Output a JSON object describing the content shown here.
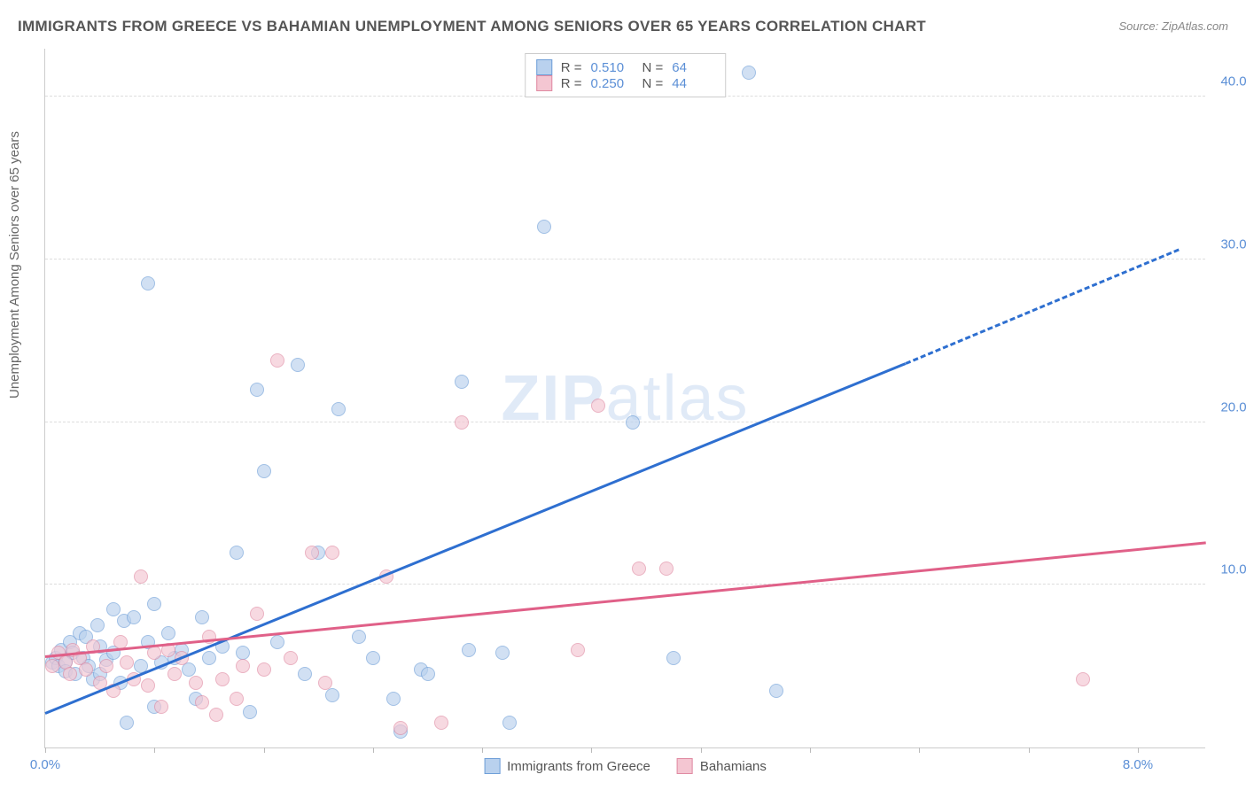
{
  "title": "IMMIGRANTS FROM GREECE VS BAHAMIAN UNEMPLOYMENT AMONG SENIORS OVER 65 YEARS CORRELATION CHART",
  "source": "Source: ZipAtlas.com",
  "ylabel": "Unemployment Among Seniors over 65 years",
  "watermark_a": "ZIP",
  "watermark_b": "atlas",
  "chart": {
    "type": "scatter",
    "xlim": [
      0,
      8.5
    ],
    "ylim": [
      0,
      43
    ],
    "x_ticks": [
      0.0,
      0.8,
      1.6,
      2.4,
      3.2,
      4.0,
      4.8,
      5.6,
      6.4,
      7.2,
      8.0
    ],
    "x_tick_labels": {
      "0": "0.0%",
      "8": "8.0%"
    },
    "y_gridlines": [
      10,
      20,
      30,
      40
    ],
    "y_tick_labels": {
      "10": "10.0%",
      "20": "20.0%",
      "30": "30.0%",
      "40": "40.0%"
    },
    "background_color": "#ffffff",
    "grid_color": "#dddddd",
    "axis_color": "#cccccc",
    "tick_label_color": "#5b8fd6",
    "point_radius": 8,
    "point_opacity": 0.65,
    "series": [
      {
        "name": "Immigrants from Greece",
        "color_fill": "#b9d1ee",
        "color_stroke": "#6f9fd8",
        "R": "0.510",
        "N": "64",
        "trend": {
          "x1": 0.0,
          "y1": 2.0,
          "x2": 6.3,
          "y2": 23.5,
          "dash_x2": 8.3,
          "dash_y2": 30.5,
          "color": "#2e6fd0",
          "width": 3
        },
        "points": [
          [
            0.05,
            5.2
          ],
          [
            0.08,
            5.5
          ],
          [
            0.1,
            5.0
          ],
          [
            0.12,
            6.0
          ],
          [
            0.15,
            5.3
          ],
          [
            0.15,
            4.7
          ],
          [
            0.18,
            6.5
          ],
          [
            0.2,
            5.8
          ],
          [
            0.22,
            4.5
          ],
          [
            0.25,
            7.0
          ],
          [
            0.28,
            5.5
          ],
          [
            0.3,
            6.8
          ],
          [
            0.32,
            5.0
          ],
          [
            0.35,
            4.2
          ],
          [
            0.38,
            7.5
          ],
          [
            0.4,
            6.2
          ],
          [
            0.45,
            5.4
          ],
          [
            0.5,
            8.5
          ],
          [
            0.5,
            5.8
          ],
          [
            0.55,
            4.0
          ],
          [
            0.58,
            7.8
          ],
          [
            0.6,
            1.5
          ],
          [
            0.65,
            8.0
          ],
          [
            0.7,
            5.0
          ],
          [
            0.75,
            6.5
          ],
          [
            0.8,
            2.5
          ],
          [
            0.8,
            8.8
          ],
          [
            0.85,
            5.2
          ],
          [
            0.9,
            7.0
          ],
          [
            0.95,
            5.5
          ],
          [
            1.0,
            6.0
          ],
          [
            1.05,
            4.8
          ],
          [
            1.1,
            3.0
          ],
          [
            1.15,
            8.0
          ],
          [
            1.2,
            5.5
          ],
          [
            1.3,
            6.2
          ],
          [
            1.4,
            12.0
          ],
          [
            1.45,
            5.8
          ],
          [
            1.5,
            2.2
          ],
          [
            1.55,
            22.0
          ],
          [
            1.6,
            17.0
          ],
          [
            1.7,
            6.5
          ],
          [
            1.85,
            23.5
          ],
          [
            1.9,
            4.5
          ],
          [
            2.0,
            12.0
          ],
          [
            2.1,
            3.2
          ],
          [
            2.15,
            20.8
          ],
          [
            2.3,
            6.8
          ],
          [
            2.4,
            5.5
          ],
          [
            2.55,
            3.0
          ],
          [
            2.6,
            1.0
          ],
          [
            2.75,
            4.8
          ],
          [
            2.8,
            4.5
          ],
          [
            3.05,
            22.5
          ],
          [
            3.1,
            6.0
          ],
          [
            3.35,
            5.8
          ],
          [
            3.4,
            1.5
          ],
          [
            3.65,
            32.0
          ],
          [
            4.3,
            20.0
          ],
          [
            4.6,
            5.5
          ],
          [
            5.15,
            41.5
          ],
          [
            5.35,
            3.5
          ],
          [
            0.75,
            28.5
          ],
          [
            0.4,
            4.5
          ]
        ]
      },
      {
        "name": "Bahamians",
        "color_fill": "#f4c6d2",
        "color_stroke": "#e08aa2",
        "R": "0.250",
        "N": "44",
        "trend": {
          "x1": 0.0,
          "y1": 5.5,
          "x2": 8.5,
          "y2": 12.5,
          "color": "#e06088",
          "width": 3
        },
        "points": [
          [
            0.05,
            5.0
          ],
          [
            0.1,
            5.8
          ],
          [
            0.15,
            5.2
          ],
          [
            0.18,
            4.5
          ],
          [
            0.2,
            6.0
          ],
          [
            0.25,
            5.5
          ],
          [
            0.3,
            4.8
          ],
          [
            0.35,
            6.2
          ],
          [
            0.4,
            4.0
          ],
          [
            0.45,
            5.0
          ],
          [
            0.5,
            3.5
          ],
          [
            0.55,
            6.5
          ],
          [
            0.6,
            5.2
          ],
          [
            0.65,
            4.2
          ],
          [
            0.7,
            10.5
          ],
          [
            0.75,
            3.8
          ],
          [
            0.8,
            5.8
          ],
          [
            0.85,
            2.5
          ],
          [
            0.9,
            6.0
          ],
          [
            0.95,
            4.5
          ],
          [
            1.0,
            5.5
          ],
          [
            1.1,
            4.0
          ],
          [
            1.15,
            2.8
          ],
          [
            1.2,
            6.8
          ],
          [
            1.3,
            4.2
          ],
          [
            1.4,
            3.0
          ],
          [
            1.45,
            5.0
          ],
          [
            1.55,
            8.2
          ],
          [
            1.6,
            4.8
          ],
          [
            1.7,
            23.8
          ],
          [
            1.8,
            5.5
          ],
          [
            1.95,
            12.0
          ],
          [
            2.05,
            4.0
          ],
          [
            2.1,
            12.0
          ],
          [
            2.5,
            10.5
          ],
          [
            2.6,
            1.2
          ],
          [
            2.9,
            1.5
          ],
          [
            3.05,
            20.0
          ],
          [
            3.9,
            6.0
          ],
          [
            4.05,
            21.0
          ],
          [
            4.35,
            11.0
          ],
          [
            4.55,
            11.0
          ],
          [
            7.6,
            4.2
          ],
          [
            1.25,
            2.0
          ]
        ]
      }
    ]
  },
  "legend_bottom": [
    {
      "label": "Immigrants from Greece",
      "fill": "#b9d1ee",
      "stroke": "#6f9fd8"
    },
    {
      "label": "Bahamians",
      "fill": "#f4c6d2",
      "stroke": "#e08aa2"
    }
  ]
}
